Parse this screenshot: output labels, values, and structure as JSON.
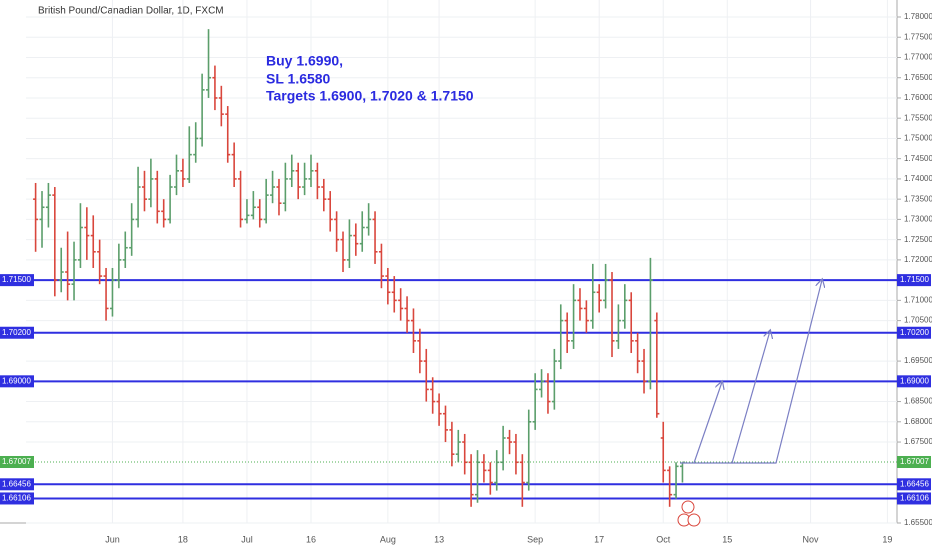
{
  "chart_data": {
    "type": "ohlc",
    "title": "British Pound/Canadian Dollar, 1D, FXCM",
    "annotation": [
      "Buy 1.6990,",
      "SL 1.6580",
      "Targets 1.6900, 1.7020 & 1.7150"
    ],
    "up_color": "#5b9e6b",
    "down_color": "#d9463c",
    "grid": true,
    "categories": [
      null,
      null,
      null,
      null,
      null,
      null,
      null,
      null,
      null,
      null,
      null,
      null,
      null,
      "Jun",
      null,
      null,
      null,
      null,
      null,
      null,
      null,
      null,
      null,
      null,
      "18",
      null,
      null,
      null,
      null,
      null,
      null,
      null,
      null,
      null,
      "Jul",
      null,
      null,
      null,
      null,
      null,
      null,
      null,
      null,
      null,
      "16",
      null,
      null,
      null,
      null,
      null,
      null,
      null,
      null,
      null,
      null,
      null,
      "Aug",
      null,
      null,
      null,
      null,
      null,
      null,
      null,
      "13",
      null,
      null,
      null,
      null,
      null,
      null,
      null,
      null,
      null,
      null,
      null,
      null,
      null,
      null,
      "Sep",
      null,
      null,
      null,
      null,
      null,
      null,
      null,
      null,
      null,
      "17",
      null,
      null,
      null,
      null,
      null,
      null,
      null,
      null,
      null,
      "Oct",
      null,
      null,
      null,
      null,
      null,
      null,
      null,
      null,
      null,
      "15",
      null,
      null,
      null,
      null,
      null,
      null,
      null,
      null,
      null,
      null,
      null,
      null,
      "Nov",
      null,
      null,
      null,
      null,
      null,
      null,
      null,
      null,
      null,
      null,
      null,
      "19",
      null
    ],
    "ohlc": [
      null,
      [
        1.735,
        1.739,
        1.722,
        1.73
      ],
      [
        1.73,
        1.737,
        1.723,
        1.733
      ],
      [
        1.733,
        1.739,
        1.728,
        1.736
      ],
      [
        1.736,
        1.738,
        1.711,
        1.715
      ],
      [
        1.715,
        1.723,
        1.712,
        1.717
      ],
      [
        1.717,
        1.727,
        1.71,
        1.714
      ],
      [
        1.714,
        1.7245,
        1.71,
        1.72
      ],
      [
        1.72,
        1.734,
        1.718,
        1.728
      ],
      [
        1.728,
        1.733,
        1.72,
        1.726
      ],
      [
        1.726,
        1.731,
        1.718,
        1.722
      ],
      [
        1.722,
        1.725,
        1.714,
        1.716
      ],
      [
        1.716,
        1.718,
        1.705,
        1.708
      ],
      [
        1.708,
        1.718,
        1.706,
        1.715
      ],
      [
        1.715,
        1.724,
        1.713,
        1.72
      ],
      [
        1.72,
        1.727,
        1.718,
        1.723
      ],
      [
        1.723,
        1.734,
        1.721,
        1.73
      ],
      [
        1.73,
        1.743,
        1.728,
        1.738
      ],
      [
        1.738,
        1.742,
        1.732,
        1.735
      ],
      [
        1.735,
        1.745,
        1.733,
        1.74
      ],
      [
        1.74,
        1.742,
        1.729,
        1.732
      ],
      [
        1.732,
        1.735,
        1.728,
        1.73
      ],
      [
        1.73,
        1.741,
        1.729,
        1.738
      ],
      [
        1.738,
        1.746,
        1.736,
        1.742
      ],
      [
        1.742,
        1.745,
        1.738,
        1.74
      ],
      [
        1.74,
        1.753,
        1.739,
        1.746
      ],
      [
        1.746,
        1.754,
        1.744,
        1.75
      ],
      [
        1.75,
        1.766,
        1.748,
        1.762
      ],
      [
        1.762,
        1.777,
        1.76,
        1.765
      ],
      [
        1.765,
        1.768,
        1.757,
        1.76
      ],
      [
        1.76,
        1.763,
        1.753,
        1.756
      ],
      [
        1.756,
        1.758,
        1.744,
        1.746
      ],
      [
        1.746,
        1.749,
        1.738,
        1.74
      ],
      [
        1.74,
        1.742,
        1.728,
        1.73
      ],
      [
        1.73,
        1.735,
        1.729,
        1.731
      ],
      [
        1.731,
        1.737,
        1.73,
        1.733
      ],
      [
        1.733,
        1.735,
        1.728,
        1.73
      ],
      [
        1.73,
        1.74,
        1.729,
        1.736
      ],
      [
        1.736,
        1.742,
        1.734,
        1.738
      ],
      [
        1.738,
        1.74,
        1.731,
        1.734
      ],
      [
        1.734,
        1.744,
        1.732,
        1.74
      ],
      [
        1.74,
        1.746,
        1.738,
        1.742
      ],
      [
        1.742,
        1.744,
        1.735,
        1.738
      ],
      [
        1.738,
        1.744,
        1.736,
        1.74
      ],
      [
        1.74,
        1.746,
        1.738,
        1.742
      ],
      [
        1.742,
        1.744,
        1.735,
        1.738
      ],
      [
        1.738,
        1.74,
        1.732,
        1.735
      ],
      [
        1.735,
        1.737,
        1.727,
        1.73
      ],
      [
        1.73,
        1.732,
        1.722,
        1.725
      ],
      [
        1.725,
        1.727,
        1.717,
        1.72
      ],
      [
        1.72,
        1.73,
        1.718,
        1.726
      ],
      [
        1.726,
        1.729,
        1.721,
        1.724
      ],
      [
        1.724,
        1.732,
        1.722,
        1.728
      ],
      [
        1.728,
        1.734,
        1.726,
        1.73
      ],
      [
        1.73,
        1.732,
        1.719,
        1.722
      ],
      [
        1.722,
        1.724,
        1.713,
        1.716
      ],
      [
        1.716,
        1.718,
        1.709,
        1.712
      ],
      [
        1.712,
        1.716,
        1.707,
        1.71
      ],
      [
        1.71,
        1.713,
        1.705,
        1.708
      ],
      [
        1.708,
        1.711,
        1.702,
        1.705
      ],
      [
        1.705,
        1.708,
        1.697,
        1.7
      ],
      [
        1.7,
        1.703,
        1.692,
        1.695
      ],
      [
        1.695,
        1.698,
        1.685,
        1.688
      ],
      [
        1.688,
        1.691,
        1.682,
        1.685
      ],
      [
        1.685,
        1.687,
        1.679,
        1.682
      ],
      [
        1.682,
        1.684,
        1.675,
        1.678
      ],
      [
        1.678,
        1.68,
        1.669,
        1.672
      ],
      [
        1.672,
        1.678,
        1.67,
        1.675
      ],
      [
        1.675,
        1.677,
        1.667,
        1.67
      ],
      [
        1.67,
        1.672,
        1.659,
        1.662
      ],
      [
        1.662,
        1.673,
        1.66,
        1.67
      ],
      [
        1.67,
        1.672,
        1.665,
        1.668
      ],
      [
        1.668,
        1.67,
        1.662,
        1.665
      ],
      [
        1.665,
        1.673,
        1.663,
        1.67
      ],
      [
        1.67,
        1.679,
        1.668,
        1.676
      ],
      [
        1.676,
        1.678,
        1.672,
        1.675
      ],
      [
        1.675,
        1.677,
        1.667,
        1.67
      ],
      [
        1.67,
        1.672,
        1.659,
        1.665
      ],
      [
        1.665,
        1.683,
        1.663,
        1.68
      ],
      [
        1.68,
        1.692,
        1.678,
        1.688
      ],
      [
        1.688,
        1.693,
        1.686,
        1.69
      ],
      [
        1.69,
        1.692,
        1.682,
        1.685
      ],
      [
        1.685,
        1.698,
        1.683,
        1.695
      ],
      [
        1.695,
        1.709,
        1.693,
        1.705
      ],
      [
        1.705,
        1.707,
        1.697,
        1.7
      ],
      [
        1.7,
        1.714,
        1.698,
        1.71
      ],
      [
        1.71,
        1.713,
        1.705,
        1.708
      ],
      [
        1.708,
        1.71,
        1.702,
        1.705
      ],
      [
        1.705,
        1.719,
        1.703,
        1.712
      ],
      [
        1.712,
        1.714,
        1.707,
        1.71
      ],
      [
        1.71,
        1.719,
        1.708,
        1.715
      ],
      [
        1.715,
        1.717,
        1.696,
        1.7
      ],
      [
        1.7,
        1.709,
        1.698,
        1.705
      ],
      [
        1.705,
        1.714,
        1.703,
        1.71
      ],
      [
        1.71,
        1.712,
        1.697,
        1.7
      ],
      [
        1.7,
        1.702,
        1.692,
        1.695
      ],
      [
        1.695,
        1.698,
        1.687,
        1.69
      ],
      [
        1.69,
        1.7205,
        1.688,
        1.715
      ],
      [
        1.705,
        1.707,
        1.681,
        1.682
      ],
      [
        1.676,
        1.68,
        1.665,
        1.668
      ],
      [
        1.668,
        1.669,
        1.659,
        1.662
      ],
      [
        1.662,
        1.67,
        1.661,
        1.669
      ],
      [
        1.669,
        1.67,
        1.665,
        1.67
      ],
      null,
      null,
      null,
      null,
      null,
      null,
      null,
      null,
      null,
      null,
      null,
      null,
      null,
      null,
      null,
      null,
      null,
      null,
      null,
      null,
      null,
      null,
      null,
      null,
      null,
      null,
      null,
      null,
      null,
      null,
      null,
      null,
      null
    ],
    "ylim": [
      1.655,
      1.7842
    ],
    "yticks": [
      {
        "value": 1.78,
        "label": "1.78000"
      },
      {
        "value": 1.775,
        "label": "1.77500"
      },
      {
        "value": 1.77,
        "label": "1.77000"
      },
      {
        "value": 1.765,
        "label": "1.76500"
      },
      {
        "value": 1.76,
        "label": "1.76000"
      },
      {
        "value": 1.755,
        "label": "1.75500"
      },
      {
        "value": 1.75,
        "label": "1.75000"
      },
      {
        "value": 1.745,
        "label": "1.74500"
      },
      {
        "value": 1.74,
        "label": "1.74000"
      },
      {
        "value": 1.735,
        "label": "1.73500"
      },
      {
        "value": 1.73,
        "label": "1.73000"
      },
      {
        "value": 1.725,
        "label": "1.72500"
      },
      {
        "value": 1.72,
        "label": "1.72000"
      },
      {
        "value": 1.71,
        "label": "1.71000"
      },
      {
        "value": 1.705,
        "label": "1.70500"
      },
      {
        "value": 1.695,
        "label": "1.69500"
      },
      {
        "value": 1.685,
        "label": "1.68500"
      },
      {
        "value": 1.68,
        "label": "1.68000"
      },
      {
        "value": 1.675,
        "label": "1.67500"
      },
      {
        "value": 1.655,
        "label": "1.65500"
      }
    ],
    "levels": [
      {
        "value": 1.715,
        "label": "1.71500",
        "color": "#2f2fe0"
      },
      {
        "value": 1.702,
        "label": "1.70200",
        "color": "#2f2fe0"
      },
      {
        "value": 1.69,
        "label": "1.69000",
        "color": "#2f2fe0"
      },
      {
        "value": 1.66456,
        "label": "1.66456",
        "color": "#2f2fe0"
      },
      {
        "value": 1.66106,
        "label": "1.66106",
        "color": "#2f2fe0"
      }
    ],
    "current_price": {
      "value": 1.67007,
      "label": "1.67007",
      "color": "#4caf50"
    }
  }
}
